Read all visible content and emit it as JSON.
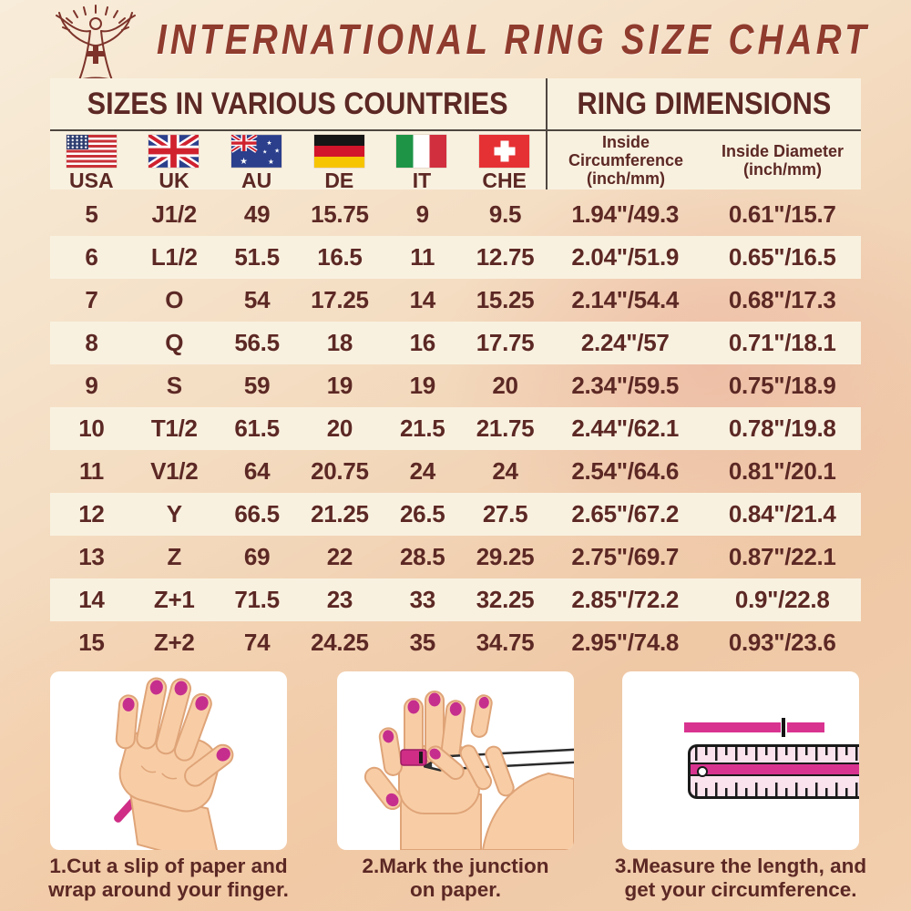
{
  "title": "INTERNATIONAL RING SIZE CHART",
  "table_header": {
    "left": "SIZES IN VARIOUS COUNTRIES",
    "right": "RING DIMENSIONS"
  },
  "countries": [
    {
      "code": "USA",
      "flag": "usa-flag-icon"
    },
    {
      "code": "UK",
      "flag": "uk-flag-icon"
    },
    {
      "code": "AU",
      "flag": "australia-flag-icon"
    },
    {
      "code": "DE",
      "flag": "germany-flag-icon"
    },
    {
      "code": "IT",
      "flag": "italy-flag-icon"
    },
    {
      "code": "CHE",
      "flag": "switzerland-flag-icon"
    }
  ],
  "dimension_headers": [
    {
      "name": "Inside Circumference",
      "unit": "(inch/mm)"
    },
    {
      "name": "Inside Diameter",
      "unit": "(inch/mm)"
    }
  ],
  "chart_data": {
    "type": "table",
    "title": "INTERNATIONAL RING SIZE CHART",
    "columns": [
      "USA",
      "UK",
      "AU",
      "DE",
      "IT",
      "CHE",
      "Inside Circumference (inch/mm)",
      "Inside Diameter (inch/mm)"
    ],
    "rows": [
      [
        "5",
        "J1/2",
        "49",
        "15.75",
        "9",
        "9.5",
        "1.94\"/49.3",
        "0.61\"/15.7"
      ],
      [
        "6",
        "L1/2",
        "51.5",
        "16.5",
        "11",
        "12.75",
        "2.04\"/51.9",
        "0.65\"/16.5"
      ],
      [
        "7",
        "O",
        "54",
        "17.25",
        "14",
        "15.25",
        "2.14\"/54.4",
        "0.68\"/17.3"
      ],
      [
        "8",
        "Q",
        "56.5",
        "18",
        "16",
        "17.75",
        "2.24\"/57",
        "0.71\"/18.1"
      ],
      [
        "9",
        "S",
        "59",
        "19",
        "19",
        "20",
        "2.34\"/59.5",
        "0.75\"/18.9"
      ],
      [
        "10",
        "T1/2",
        "61.5",
        "20",
        "21.5",
        "21.75",
        "2.44\"/62.1",
        "0.78\"/19.8"
      ],
      [
        "11",
        "V1/2",
        "64",
        "20.75",
        "24",
        "24",
        "2.54\"/64.6",
        "0.81\"/20.1"
      ],
      [
        "12",
        "Y",
        "66.5",
        "21.25",
        "26.5",
        "27.5",
        "2.65\"/67.2",
        "0.84\"/21.4"
      ],
      [
        "13",
        "Z",
        "69",
        "22",
        "28.5",
        "29.25",
        "2.75\"/69.7",
        "0.87\"/22.1"
      ],
      [
        "14",
        "Z+1",
        "71.5",
        "23",
        "33",
        "32.25",
        "2.85\"/72.2",
        "0.9\"/22.8"
      ],
      [
        "15",
        "Z+2",
        "74",
        "24.25",
        "35",
        "34.75",
        "2.95\"/74.8",
        "0.93\"/23.6"
      ]
    ]
  },
  "instructions": [
    {
      "illustration": "hand-with-paper-strip",
      "lines": [
        "1.Cut a slip of paper and",
        "wrap around your finger."
      ]
    },
    {
      "illustration": "mark-junction-hands",
      "lines": [
        "2.Mark the junction",
        "on paper."
      ]
    },
    {
      "illustration": "ruler-measurement",
      "lines": [
        "3.Measure the length, and",
        "get your circumference."
      ]
    }
  ],
  "colors": {
    "text_maroon": "#5c2824",
    "title_red": "#8f3b2d",
    "panel_cream": "#f9f1e0",
    "accent_magenta": "#cf2d86",
    "divider_dark": "#4e463f",
    "skin": "#f8cda6",
    "nail_polish": "#c62e8d"
  }
}
